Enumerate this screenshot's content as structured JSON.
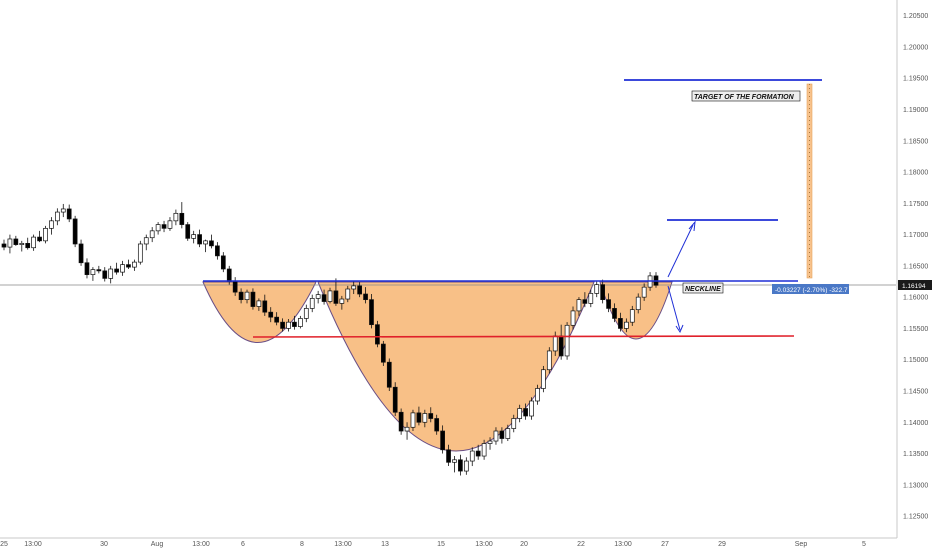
{
  "chart_data": {
    "type": "candlestick",
    "grid": false,
    "y_axis": {
      "position": "right",
      "range": [
        1.1215,
        1.2075
      ],
      "ticks": [
        "1.20500",
        "1.20000",
        "1.19500",
        "1.19000",
        "1.18500",
        "1.18000",
        "1.17500",
        "1.17000",
        "1.16500",
        "1.16000",
        "1.15500",
        "1.15000",
        "1.14500",
        "1.14000",
        "1.13500",
        "1.13000",
        "1.12500"
      ]
    },
    "x_axis": {
      "range": [
        0,
        912
      ],
      "ticks": [
        {
          "label": "25",
          "x": 4
        },
        {
          "label": "13:00",
          "x": 33
        },
        {
          "label": "30",
          "x": 104
        },
        {
          "label": "Aug",
          "x": 157
        },
        {
          "label": "13:00",
          "x": 201
        },
        {
          "label": "6",
          "x": 243
        },
        {
          "label": "8",
          "x": 302
        },
        {
          "label": "13:00",
          "x": 343
        },
        {
          "label": "13",
          "x": 385
        },
        {
          "label": "15",
          "x": 441
        },
        {
          "label": "13:00",
          "x": 484
        },
        {
          "label": "20",
          "x": 524
        },
        {
          "label": "22",
          "x": 581
        },
        {
          "label": "13:00",
          "x": 623
        },
        {
          "label": "27",
          "x": 665
        },
        {
          "label": "29",
          "x": 722
        },
        {
          "label": "Sep",
          "x": 801
        },
        {
          "label": "5",
          "x": 864
        }
      ]
    },
    "current_price": {
      "value": 1.16194,
      "label": "1.16194"
    },
    "measure_label": "-0.03227 (-2.70%) -322.7",
    "annotations": {
      "target": "TARGET OF THE FORMATION",
      "neckline": "NECKLINE"
    },
    "levels": {
      "neckline": 1.1624,
      "target": 1.1958,
      "bullish_target": 1.1723,
      "red_line": 1.1531,
      "head_low": 1.1306
    },
    "candles": [
      [
        1.1685,
        1.1692,
        1.1675,
        1.168
      ],
      [
        1.168,
        1.17,
        1.167,
        1.1693
      ],
      [
        1.1693,
        1.1698,
        1.1682,
        1.1684
      ],
      [
        1.1684,
        1.169,
        1.1673,
        1.1686
      ],
      [
        1.1686,
        1.1695,
        1.1676,
        1.1679
      ],
      [
        1.1679,
        1.17,
        1.1674,
        1.1696
      ],
      [
        1.1696,
        1.1706,
        1.1688,
        1.169
      ],
      [
        1.169,
        1.1714,
        1.1686,
        1.171
      ],
      [
        1.171,
        1.1728,
        1.17,
        1.1722
      ],
      [
        1.1722,
        1.1742,
        1.1715,
        1.1736
      ],
      [
        1.1736,
        1.1749,
        1.1728,
        1.1741
      ],
      [
        1.1741,
        1.1748,
        1.172,
        1.1725
      ],
      [
        1.1725,
        1.173,
        1.168,
        1.1685
      ],
      [
        1.1685,
        1.1692,
        1.165,
        1.1655
      ],
      [
        1.1655,
        1.1662,
        1.163,
        1.1636
      ],
      [
        1.1636,
        1.1648,
        1.1626,
        1.1644
      ],
      [
        1.1644,
        1.165,
        1.1638,
        1.1642
      ],
      [
        1.1642,
        1.1648,
        1.1625,
        1.163
      ],
      [
        1.163,
        1.165,
        1.1622,
        1.1645
      ],
      [
        1.1645,
        1.1655,
        1.1636,
        1.164
      ],
      [
        1.164,
        1.1658,
        1.1634,
        1.1652
      ],
      [
        1.1652,
        1.166,
        1.1645,
        1.1648
      ],
      [
        1.1648,
        1.166,
        1.1642,
        1.1656
      ],
      [
        1.1656,
        1.169,
        1.1652,
        1.1685
      ],
      [
        1.1685,
        1.17,
        1.1675,
        1.1695
      ],
      [
        1.1695,
        1.1712,
        1.1688,
        1.1706
      ],
      [
        1.1706,
        1.172,
        1.17,
        1.1716
      ],
      [
        1.1716,
        1.1722,
        1.1704,
        1.171
      ],
      [
        1.171,
        1.1728,
        1.1706,
        1.1722
      ],
      [
        1.1722,
        1.174,
        1.1715,
        1.1734
      ],
      [
        1.1734,
        1.1752,
        1.171,
        1.1716
      ],
      [
        1.1716,
        1.172,
        1.169,
        1.1694
      ],
      [
        1.1694,
        1.1706,
        1.1686,
        1.17
      ],
      [
        1.17,
        1.1708,
        1.168,
        1.1685
      ],
      [
        1.1685,
        1.1692,
        1.1672,
        1.169
      ],
      [
        1.169,
        1.17,
        1.1678,
        1.1682
      ],
      [
        1.1682,
        1.1688,
        1.166,
        1.1666
      ],
      [
        1.1666,
        1.1672,
        1.164,
        1.1645
      ],
      [
        1.1645,
        1.165,
        1.162,
        1.1625
      ],
      [
        1.1625,
        1.1632,
        1.1602,
        1.1608
      ],
      [
        1.1608,
        1.1614,
        1.159,
        1.1596
      ],
      [
        1.1596,
        1.1612,
        1.159,
        1.1608
      ],
      [
        1.1608,
        1.1614,
        1.158,
        1.1585
      ],
      [
        1.1585,
        1.1598,
        1.1578,
        1.1594
      ],
      [
        1.1594,
        1.1604,
        1.157,
        1.1576
      ],
      [
        1.1576,
        1.1584,
        1.156,
        1.1568
      ],
      [
        1.1568,
        1.1576,
        1.1555,
        1.156
      ],
      [
        1.156,
        1.1566,
        1.1545,
        1.155
      ],
      [
        1.155,
        1.1565,
        1.1545,
        1.156
      ],
      [
        1.156,
        1.157,
        1.1548,
        1.1553
      ],
      [
        1.1553,
        1.157,
        1.155,
        1.1566
      ],
      [
        1.1566,
        1.1588,
        1.156,
        1.1582
      ],
      [
        1.1582,
        1.1604,
        1.1576,
        1.1598
      ],
      [
        1.1598,
        1.161,
        1.159,
        1.1604
      ],
      [
        1.1604,
        1.1612,
        1.1588,
        1.1593
      ],
      [
        1.1593,
        1.1615,
        1.159,
        1.161
      ],
      [
        1.161,
        1.163,
        1.1586,
        1.159
      ],
      [
        1.159,
        1.1602,
        1.158,
        1.1597
      ],
      [
        1.1597,
        1.1618,
        1.1592,
        1.1613
      ],
      [
        1.1613,
        1.1625,
        1.1605,
        1.1618
      ],
      [
        1.1618,
        1.1624,
        1.16,
        1.1605
      ],
      [
        1.1605,
        1.1616,
        1.159,
        1.1596
      ],
      [
        1.1596,
        1.1605,
        1.155,
        1.1556
      ],
      [
        1.1556,
        1.1562,
        1.152,
        1.1525
      ],
      [
        1.1525,
        1.153,
        1.149,
        1.1496
      ],
      [
        1.1496,
        1.1502,
        1.145,
        1.1456
      ],
      [
        1.1456,
        1.1464,
        1.141,
        1.1416
      ],
      [
        1.1416,
        1.1422,
        1.138,
        1.1386
      ],
      [
        1.1386,
        1.14,
        1.1372,
        1.1392
      ],
      [
        1.1392,
        1.142,
        1.1386,
        1.1415
      ],
      [
        1.1415,
        1.1425,
        1.1395,
        1.14
      ],
      [
        1.14,
        1.142,
        1.1392,
        1.1414
      ],
      [
        1.1414,
        1.1424,
        1.14,
        1.1406
      ],
      [
        1.1406,
        1.1412,
        1.138,
        1.1386
      ],
      [
        1.1386,
        1.1395,
        1.135,
        1.1356
      ],
      [
        1.1356,
        1.1364,
        1.133,
        1.1336
      ],
      [
        1.1336,
        1.1346,
        1.132,
        1.134
      ],
      [
        1.134,
        1.1348,
        1.1315,
        1.1322
      ],
      [
        1.1322,
        1.1344,
        1.1316,
        1.1338
      ],
      [
        1.1338,
        1.136,
        1.133,
        1.1354
      ],
      [
        1.1354,
        1.1364,
        1.134,
        1.1346
      ],
      [
        1.1346,
        1.1372,
        1.134,
        1.1366
      ],
      [
        1.1366,
        1.1376,
        1.1356,
        1.137
      ],
      [
        1.137,
        1.1392,
        1.1364,
        1.1386
      ],
      [
        1.1386,
        1.1392,
        1.1366,
        1.1374
      ],
      [
        1.1374,
        1.1396,
        1.137,
        1.139
      ],
      [
        1.139,
        1.1412,
        1.1384,
        1.1406
      ],
      [
        1.1406,
        1.1428,
        1.14,
        1.1422
      ],
      [
        1.1422,
        1.143,
        1.1404,
        1.141
      ],
      [
        1.141,
        1.144,
        1.1404,
        1.1434
      ],
      [
        1.1434,
        1.146,
        1.1428,
        1.1454
      ],
      [
        1.1454,
        1.149,
        1.1448,
        1.1484
      ],
      [
        1.1484,
        1.152,
        1.1478,
        1.1514
      ],
      [
        1.1514,
        1.1545,
        1.1506,
        1.1538
      ],
      [
        1.1538,
        1.1556,
        1.15,
        1.1506
      ],
      [
        1.1506,
        1.156,
        1.15,
        1.1555
      ],
      [
        1.1555,
        1.1585,
        1.1548,
        1.1578
      ],
      [
        1.1578,
        1.16,
        1.157,
        1.1596
      ],
      [
        1.1596,
        1.1608,
        1.1584,
        1.159
      ],
      [
        1.159,
        1.1612,
        1.1584,
        1.1606
      ],
      [
        1.1606,
        1.1626,
        1.16,
        1.162
      ],
      [
        1.162,
        1.1628,
        1.159,
        1.1596
      ],
      [
        1.1596,
        1.1606,
        1.1576,
        1.1582
      ],
      [
        1.1582,
        1.159,
        1.156,
        1.1566
      ],
      [
        1.1566,
        1.1575,
        1.1545,
        1.155
      ],
      [
        1.155,
        1.1566,
        1.1544,
        1.156
      ],
      [
        1.156,
        1.1586,
        1.1554,
        1.158
      ],
      [
        1.158,
        1.1606,
        1.1574,
        1.16
      ],
      [
        1.16,
        1.1622,
        1.1594,
        1.1616
      ],
      [
        1.1616,
        1.164,
        1.161,
        1.1634
      ],
      [
        1.1634,
        1.164,
        1.1615,
        1.1619
      ]
    ]
  }
}
